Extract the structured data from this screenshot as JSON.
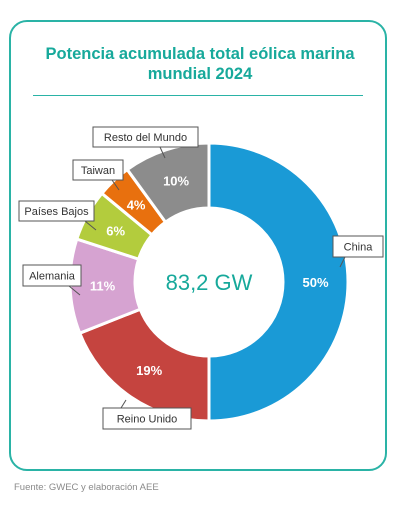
{
  "title_line1": "Potencia acumulada total eólica marina",
  "title_line2": "mundial 2024",
  "source": "Fuente: GWEC y elaboración AEE",
  "chart_data": {
    "type": "pie",
    "variant": "donut",
    "title": "Potencia acumulada total eólica marina mundial 2024",
    "center_label": "83,2 GW",
    "slices": [
      {
        "label": "China",
        "value": 50,
        "value_label": "50%",
        "color": "#1a9ad6"
      },
      {
        "label": "Reino Unido",
        "value": 19,
        "value_label": "19%",
        "color": "#c5443f"
      },
      {
        "label": "Alemania",
        "value": 11,
        "value_label": "11%",
        "color": "#d6a3d1"
      },
      {
        "label": "Países Bajos",
        "value": 6,
        "value_label": "6%",
        "color": "#b3cc3d"
      },
      {
        "label": "Taiwan",
        "value": 4,
        "value_label": "4%",
        "color": "#e8700e"
      },
      {
        "label": "Resto del Mundo",
        "value": 10,
        "value_label": "10%",
        "color": "#8c8c8c"
      }
    ]
  }
}
